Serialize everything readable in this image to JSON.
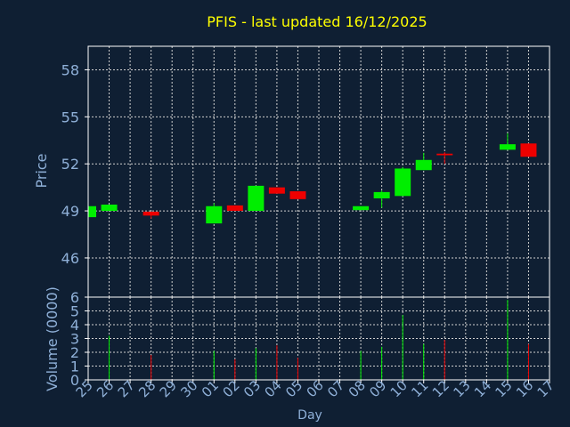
{
  "chart_data": [
    {
      "type": "candlestick",
      "title": "PFIS - last updated 16/12/2025",
      "ylabel": "Price",
      "ylim": [
        43.5,
        59.5
      ],
      "yticks": [
        46,
        49,
        52,
        55,
        58
      ],
      "grid": true,
      "colors": {
        "up": "#00ee00",
        "down": "#ee0000",
        "title": "#ffff00",
        "axis_text": "#8fb0d8",
        "background": "#0f1f33",
        "grid": "#d0d0d0"
      },
      "series": [
        {
          "day": "25",
          "open": 48.6,
          "close": 49.3,
          "high": 49.3,
          "low": 48.6,
          "dir": "up"
        },
        {
          "day": "26",
          "open": 49.0,
          "close": 49.4,
          "high": 49.4,
          "low": 49.0,
          "dir": "up"
        },
        {
          "day": "28",
          "open": 48.95,
          "close": 48.7,
          "high": 48.95,
          "low": 48.5,
          "dir": "down"
        },
        {
          "day": "01",
          "open": 48.2,
          "close": 49.3,
          "high": 49.5,
          "low": 48.2,
          "dir": "up"
        },
        {
          "day": "02",
          "open": 49.35,
          "close": 49.0,
          "high": 49.35,
          "low": 49.0,
          "dir": "down"
        },
        {
          "day": "03",
          "open": 49.0,
          "close": 50.6,
          "high": 50.6,
          "low": 49.0,
          "dir": "up"
        },
        {
          "day": "04",
          "open": 50.5,
          "close": 50.1,
          "high": 50.5,
          "low": 50.1,
          "dir": "down"
        },
        {
          "day": "05",
          "open": 50.25,
          "close": 49.75,
          "high": 50.25,
          "low": 49.75,
          "dir": "down"
        },
        {
          "day": "08",
          "open": 49.05,
          "close": 49.3,
          "high": 49.3,
          "low": 49.05,
          "dir": "up"
        },
        {
          "day": "09",
          "open": 49.8,
          "close": 50.2,
          "high": 50.3,
          "low": 49.2,
          "dir": "up"
        },
        {
          "day": "10",
          "open": 49.95,
          "close": 51.7,
          "high": 51.8,
          "low": 49.95,
          "dir": "up"
        },
        {
          "day": "11",
          "open": 51.6,
          "close": 52.25,
          "high": 52.7,
          "low": 51.6,
          "dir": "up"
        },
        {
          "day": "12",
          "open": 52.65,
          "close": 52.55,
          "high": 52.75,
          "low": 52.0,
          "dir": "down"
        },
        {
          "day": "15",
          "open": 52.9,
          "close": 53.25,
          "high": 53.95,
          "low": 52.9,
          "dir": "up"
        },
        {
          "day": "16",
          "open": 53.3,
          "close": 52.45,
          "high": 53.3,
          "low": 52.45,
          "dir": "down"
        }
      ]
    },
    {
      "type": "bar",
      "ylabel": "Volume (0000)",
      "xlabel": "Day",
      "ylim": [
        0,
        6
      ],
      "yticks": [
        0,
        1,
        2,
        3,
        4,
        5,
        6
      ],
      "categories": [
        "25",
        "26",
        "27",
        "28",
        "29",
        "30",
        "01",
        "02",
        "03",
        "04",
        "05",
        "06",
        "07",
        "08",
        "09",
        "10",
        "11",
        "12",
        "13",
        "14",
        "15",
        "16",
        "17"
      ],
      "series": [
        {
          "day": "26",
          "value": 3.2,
          "dir": "up"
        },
        {
          "day": "28",
          "value": 1.8,
          "dir": "down"
        },
        {
          "day": "01",
          "value": 2.1,
          "dir": "up"
        },
        {
          "day": "02",
          "value": 1.5,
          "dir": "down"
        },
        {
          "day": "03",
          "value": 2.3,
          "dir": "up"
        },
        {
          "day": "04",
          "value": 2.5,
          "dir": "down"
        },
        {
          "day": "05",
          "value": 1.6,
          "dir": "down"
        },
        {
          "day": "08",
          "value": 2.1,
          "dir": "up"
        },
        {
          "day": "09",
          "value": 2.4,
          "dir": "up"
        },
        {
          "day": "10",
          "value": 4.7,
          "dir": "up"
        },
        {
          "day": "11",
          "value": 2.6,
          "dir": "up"
        },
        {
          "day": "12",
          "value": 2.9,
          "dir": "down"
        },
        {
          "day": "15",
          "value": 5.8,
          "dir": "up"
        },
        {
          "day": "16",
          "value": 2.6,
          "dir": "down"
        }
      ]
    }
  ]
}
